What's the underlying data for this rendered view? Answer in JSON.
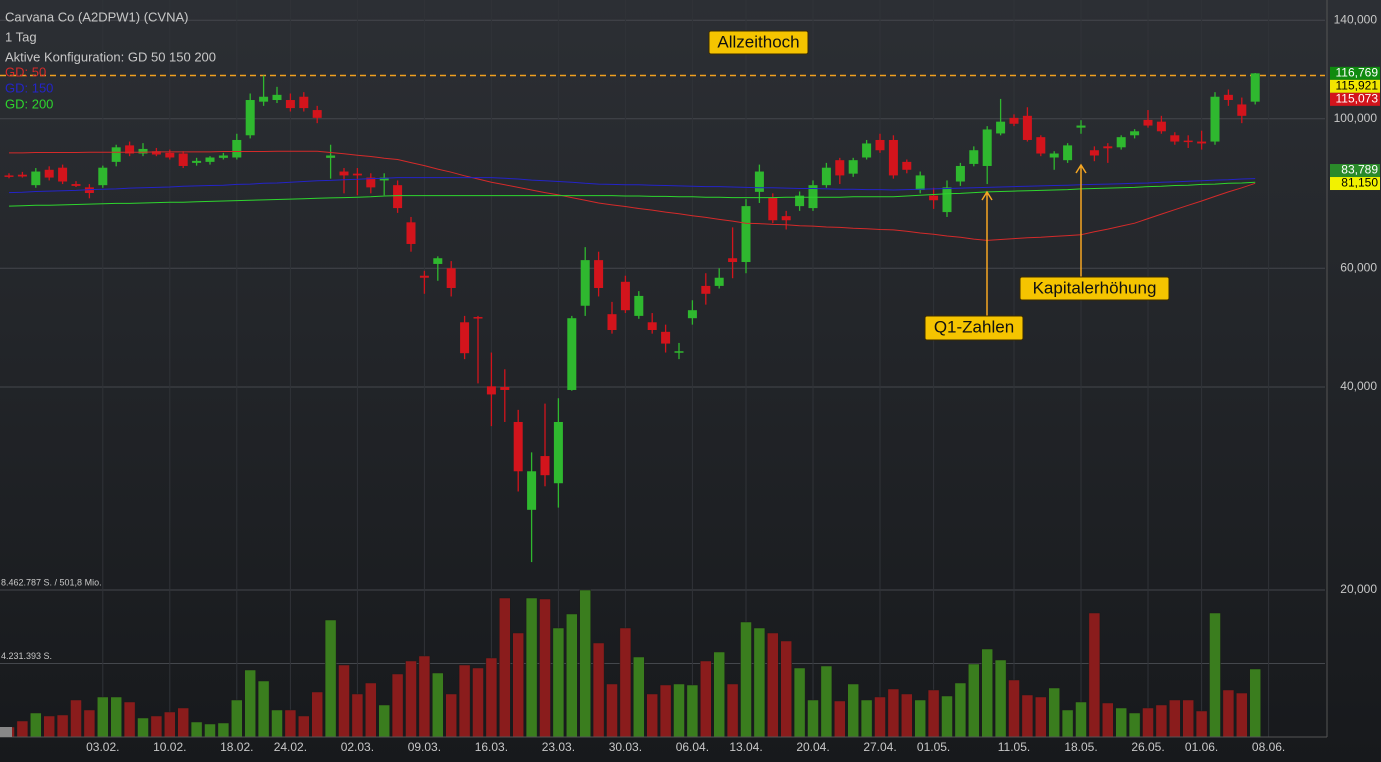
{
  "chart_data": {
    "type": "candlestick",
    "title": "Carvana Co (A2DPW1) (CVNA)",
    "subtitle": "1 Tag",
    "config": "Aktive Konfiguration: GD 50 150 200",
    "categories": [
      null,
      null,
      null,
      null,
      null,
      null,
      null,
      "03.02.",
      null,
      null,
      null,
      null,
      "10.02.",
      null,
      null,
      null,
      null,
      "18.02.",
      null,
      null,
      null,
      "24.02.",
      null,
      null,
      null,
      null,
      "02.03.",
      null,
      null,
      null,
      null,
      "09.03.",
      null,
      null,
      null,
      null,
      "16.03.",
      null,
      null,
      null,
      null,
      "23.03.",
      null,
      null,
      null,
      null,
      "30.03.",
      null,
      null,
      null,
      null,
      "06.04.",
      null,
      null,
      null,
      "13.04.",
      null,
      null,
      null,
      null,
      "20.04.",
      null,
      null,
      null,
      null,
      "27.04.",
      null,
      null,
      null,
      "01.05.",
      null,
      null,
      null,
      null,
      null,
      "11.05.",
      null,
      null,
      null,
      null,
      "18.05.",
      null,
      null,
      null,
      null,
      "26.05.",
      null,
      null,
      null,
      "01.06.",
      null,
      null,
      null,
      null,
      "08.06."
    ],
    "open": [
      82.4,
      82.6,
      79.7,
      84.0,
      84.6,
      80.0,
      79.1,
      79.7,
      86.3,
      91.3,
      88.8,
      89.5,
      89.0,
      88.8,
      86.0,
      86.3,
      87.5,
      87.6,
      94.5,
      106.0,
      106.6,
      106.6,
      107.8,
      103.0,
      87.5,
      83.5,
      82.9,
      81.8,
      81.0,
      79.7,
      70.2,
      58.5,
      60.9,
      60.0,
      49.9,
      50.8,
      40.1,
      40.0,
      35.5,
      26.3,
      31.6,
      28.8,
      39.6,
      52.8,
      61.7,
      51.3,
      57.3,
      51.0,
      49.9,
      48.3,
      45.0,
      50.6,
      56.5,
      56.5,
      62.1,
      61.3,
      77.9,
      76.4,
      71.7,
      74.2,
      73.7,
      79.7,
      86.8,
      82.9,
      87.6,
      93.0,
      93.0,
      86.3,
      78.4,
      76.9,
      72.7,
      80.7,
      85.7,
      85.1,
      95.1,
      100.3,
      101.0,
      93.9,
      87.6,
      86.8,
      97.0,
      89.8,
      91.0,
      90.7,
      94.5,
      99.6,
      99.0,
      94.5,
      92.8,
      92.5,
      92.5,
      108.5,
      105.0,
      106.0,
      null
    ],
    "high": [
      83.0,
      83.4,
      84.5,
      85.0,
      85.5,
      80.8,
      80.0,
      85.2,
      91.5,
      92.5,
      92.0,
      90.5,
      90.0,
      89.5,
      87.5,
      88.0,
      89.0,
      95.0,
      109.0,
      115.9,
      111.5,
      109.0,
      109.5,
      104.5,
      91.5,
      84.5,
      84.5,
      83.0,
      83.0,
      81.0,
      71.5,
      59.5,
      62.5,
      61.5,
      51.0,
      51.0,
      45.0,
      42.5,
      37.0,
      32.0,
      37.8,
      38.5,
      51.0,
      64.5,
      63.5,
      53.5,
      58.5,
      55.5,
      51.5,
      49.5,
      46.5,
      53.8,
      59.0,
      60.0,
      69.0,
      76.0,
      85.5,
      77.5,
      73.0,
      78.0,
      81.0,
      86.0,
      87.5,
      87.5,
      93.0,
      95.0,
      94.5,
      87.0,
      83.5,
      79.0,
      81.0,
      86.0,
      91.0,
      97.5,
      107.0,
      101.5,
      104.0,
      94.5,
      89.5,
      92.0,
      99.5,
      91.0,
      92.0,
      94.5,
      96.5,
      103.0,
      101.0,
      95.5,
      94.5,
      96.0,
      109.5,
      110.5,
      107.5,
      116.9,
      null
    ],
    "low": [
      81.6,
      81.8,
      79.0,
      81.0,
      80.0,
      79.2,
      76.2,
      79.0,
      85.0,
      88.0,
      88.0,
      88.0,
      87.0,
      84.5,
      85.2,
      85.5,
      87.0,
      87.0,
      93.5,
      104.5,
      105.5,
      102.5,
      102.5,
      98.5,
      81.5,
      77.5,
      77.0,
      77.5,
      77.0,
      72.5,
      63.5,
      55.0,
      57.5,
      54.5,
      44.0,
      40.5,
      35.0,
      35.5,
      28.0,
      22.0,
      28.5,
      26.5,
      39.5,
      51.0,
      54.5,
      48.0,
      51.5,
      50.5,
      48.0,
      45.0,
      44.0,
      49.5,
      53.0,
      56.0,
      58.0,
      59.0,
      75.0,
      70.0,
      68.5,
      73.0,
      73.0,
      79.0,
      80.0,
      82.0,
      87.0,
      89.0,
      81.5,
      83.0,
      77.5,
      73.5,
      71.5,
      79.5,
      85.0,
      80.0,
      94.5,
      97.5,
      92.5,
      88.0,
      84.0,
      86.0,
      95.0,
      86.5,
      86.0,
      90.0,
      93.5,
      97.0,
      95.0,
      91.5,
      90.5,
      90.0,
      91.5,
      104.5,
      98.5,
      105.0,
      null
    ],
    "close": [
      82.0,
      82.1,
      83.5,
      81.8,
      80.7,
      79.5,
      77.6,
      84.6,
      90.7,
      88.8,
      90.2,
      88.5,
      87.6,
      85.1,
      86.6,
      87.6,
      88.2,
      93.0,
      106.6,
      107.8,
      108.5,
      103.7,
      103.7,
      100.3,
      88.2,
      82.4,
      82.4,
      79.1,
      81.8,
      73.7,
      65.2,
      58.1,
      62.1,
      56.1,
      44.9,
      50.6,
      39.0,
      39.6,
      30.0,
      30.0,
      29.6,
      35.5,
      50.6,
      61.7,
      56.1,
      48.6,
      52.0,
      54.6,
      48.6,
      46.4,
      45.2,
      52.0,
      55.0,
      58.1,
      61.3,
      74.2,
      83.5,
      70.7,
      70.7,
      76.9,
      79.7,
      84.6,
      82.4,
      86.8,
      91.9,
      89.8,
      82.4,
      84.0,
      82.4,
      75.7,
      79.1,
      85.1,
      89.8,
      96.4,
      99.0,
      98.3,
      93.0,
      88.8,
      88.8,
      91.3,
      97.7,
      88.2,
      90.4,
      93.9,
      95.8,
      97.7,
      95.8,
      92.5,
      92.5,
      91.9,
      107.8,
      106.6,
      101.0,
      116.769,
      null
    ],
    "volume": [
      575700,
      921120,
      1381680,
      1208970,
      1266540,
      2130090,
      1554390,
      2302800,
      2302800,
      2014950,
      1093830,
      1208970,
      1439250,
      1669530,
      863550,
      748410,
      805980,
      2130090,
      3857190,
      3223920,
      1554390,
      1554390,
      1208970,
      2590650,
      6735690,
      4145040,
      2475510,
      3108780,
      1842240,
      3626910,
      4375320,
      4663170,
      3684480,
      2475510,
      4145040,
      3972330,
      4548030,
      8002230,
      5987280,
      8002230,
      7944660,
      6275130,
      7082110,
      8462787,
      5411580,
      3051210,
      6275130,
      4605600,
      2475510,
      2993640,
      3051210,
      2993640,
      4375320,
      4893450,
      3051210,
      6620550,
      6275130,
      5987280,
      5526720,
      3972330,
      2130090,
      4087470,
      2072520,
      3051210,
      2130090,
      2302800,
      2763360,
      2475510,
      2130090,
      2705790,
      2360370,
      3108780,
      4202610,
      5066160,
      4432890,
      3281490,
      2417940,
      2302800,
      2820930,
      1554390,
      2014950,
      7138680,
      1957380,
      1669530,
      1381680,
      1669530,
      1842240,
      2130090,
      2130090,
      1496820,
      7138680,
      2705790,
      2532080,
      3914760,
      null
    ],
    "up_color": "#2fb82f",
    "down_color": "#d3141c",
    "log": true,
    "ylim": [
      20,
      150
    ],
    "yticks": [
      {
        "value": 140,
        "label": "140,000"
      },
      {
        "value": 100,
        "label": "100,000"
      },
      {
        "value": 60,
        "label": "60,000"
      },
      {
        "value": 40,
        "label": "40,000"
      },
      {
        "value": 20,
        "label": "20,000"
      }
    ],
    "volume_lim": [
      0,
      8462787
    ],
    "volume_ticks": [
      {
        "value": 8462787,
        "label": "8.462.787 S. / 501,8 Mio."
      },
      {
        "value": 4231393,
        "label": "4.231.393 S."
      }
    ],
    "moving_averages": [
      {
        "name": "GD: 50",
        "color": "#d42a2a",
        "values": [
          89.0,
          89.0,
          89.1,
          89.1,
          89.1,
          89.1,
          89.2,
          89.2,
          89.2,
          89.2,
          89.2,
          89.3,
          89.3,
          89.3,
          89.3,
          89.3,
          89.4,
          89.4,
          89.4,
          89.4,
          89.5,
          89.5,
          89.5,
          89.5,
          89.1,
          88.7,
          88.3,
          87.9,
          87.4,
          87.0,
          86.1,
          85.2,
          84.2,
          83.3,
          82.3,
          81.4,
          80.5,
          79.8,
          79.1,
          78.4,
          77.7,
          77.1,
          76.4,
          75.7,
          75.0,
          74.5,
          74.1,
          73.6,
          73.2,
          72.7,
          72.3,
          71.8,
          71.4,
          70.9,
          70.5,
          70.0,
          69.9,
          69.7,
          69.6,
          69.4,
          69.3,
          69.1,
          69.0,
          68.8,
          68.7,
          68.5,
          68.4,
          68.1,
          67.7,
          67.4,
          67.0,
          66.7,
          66.3,
          66.0,
          66.2,
          66.4,
          66.6,
          66.7,
          66.9,
          67.1,
          67.3,
          68.0,
          68.6,
          69.3,
          70.0,
          71.1,
          72.2,
          73.3,
          74.4,
          75.5,
          76.7,
          77.9,
          79.0,
          80.2,
          null
        ]
      },
      {
        "name": "GD: 150",
        "color": "#2424c8",
        "values": [
          77.7,
          77.8,
          78.0,
          78.1,
          78.2,
          78.3,
          78.5,
          78.6,
          78.7,
          78.9,
          79.0,
          79.1,
          79.2,
          79.4,
          79.5,
          79.6,
          79.7,
          79.9,
          80.0,
          80.2,
          80.3,
          80.5,
          80.7,
          80.9,
          81.0,
          81.2,
          81.3,
          81.5,
          81.6,
          81.8,
          81.8,
          81.8,
          81.8,
          81.8,
          81.8,
          81.8,
          81.8,
          81.6,
          81.4,
          81.1,
          80.9,
          80.7,
          80.5,
          80.2,
          80.0,
          79.9,
          79.8,
          79.8,
          79.7,
          79.6,
          79.5,
          79.4,
          79.3,
          79.3,
          79.2,
          79.1,
          79.0,
          79.0,
          78.9,
          78.8,
          78.8,
          78.7,
          78.6,
          78.6,
          78.5,
          78.5,
          78.4,
          78.5,
          78.6,
          78.7,
          78.8,
          78.9,
          79.0,
          79.1,
          79.2,
          79.3,
          79.4,
          79.5,
          79.6,
          79.7,
          79.8,
          79.9,
          80.0,
          80.1,
          80.2,
          80.3,
          80.5,
          80.6,
          80.8,
          80.9,
          81.1,
          81.2,
          81.4,
          81.5,
          null
        ]
      },
      {
        "name": "GD: 200",
        "color": "#2ed52e",
        "values": [
          74.2,
          74.3,
          74.4,
          74.4,
          74.5,
          74.6,
          74.7,
          74.8,
          74.9,
          74.9,
          75.0,
          75.1,
          75.2,
          75.2,
          75.3,
          75.4,
          75.5,
          75.6,
          75.7,
          75.8,
          75.9,
          76.0,
          76.1,
          76.2,
          76.3,
          76.4,
          76.5,
          76.6,
          76.8,
          76.9,
          76.9,
          76.9,
          76.9,
          76.9,
          76.9,
          76.9,
          76.9,
          76.9,
          76.9,
          76.9,
          76.9,
          76.9,
          76.9,
          76.9,
          76.9,
          76.9,
          76.8,
          76.8,
          76.7,
          76.7,
          76.6,
          76.6,
          76.5,
          76.5,
          76.4,
          76.4,
          76.4,
          76.4,
          76.5,
          76.5,
          76.5,
          76.5,
          76.5,
          76.6,
          76.6,
          76.6,
          76.6,
          76.8,
          77.0,
          77.2,
          77.4,
          77.5,
          77.7,
          77.9,
          78.0,
          78.1,
          78.2,
          78.3,
          78.4,
          78.5,
          78.7,
          78.8,
          78.9,
          79.0,
          79.1,
          79.3,
          79.4,
          79.6,
          79.7,
          79.9,
          80.0,
          80.2,
          80.3,
          80.5,
          null
        ]
      }
    ],
    "reference_line": {
      "value": 115.921,
      "color": "#f0a020",
      "style": "dashed"
    },
    "price_tags": [
      {
        "value": 116.769,
        "label": "116,769",
        "color": "#0f8a0f",
        "text_color": "#ffffff"
      },
      {
        "value": 115.921,
        "label": "115,921",
        "color": "#f2e600",
        "text_color": "#000000"
      },
      {
        "value": 115.073,
        "label": "115,073",
        "color": "#d3141c",
        "text_color": "#ffffff"
      },
      {
        "value": 83.789,
        "label": "83,789",
        "color": "#2a8a2a",
        "text_color": "#ffffff"
      },
      {
        "value": 81.15,
        "label": "81,150",
        "color": "#f2f200",
        "text_color": "#000000"
      }
    ],
    "annotations": [
      "Allzeithoch",
      "Q1-Zahlen",
      "Kapitalerhöhung"
    ]
  }
}
